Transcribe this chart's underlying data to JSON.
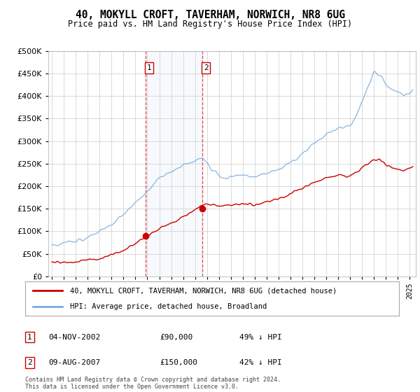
{
  "title": "40, MOKYLL CROFT, TAVERHAM, NORWICH, NR8 6UG",
  "subtitle": "Price paid vs. HM Land Registry's House Price Index (HPI)",
  "legend_line1": "40, MOKYLL CROFT, TAVERHAM, NORWICH, NR8 6UG (detached house)",
  "legend_line2": "HPI: Average price, detached house, Broadland",
  "footnote1": "Contains HM Land Registry data © Crown copyright and database right 2024.",
  "footnote2": "This data is licensed under the Open Government Licence v3.0.",
  "transaction1_date": "04-NOV-2002",
  "transaction1_price": "£90,000",
  "transaction1_hpi": "49% ↓ HPI",
  "transaction2_date": "09-AUG-2007",
  "transaction2_price": "£150,000",
  "transaction2_hpi": "42% ↓ HPI",
  "hpi_color": "#7aaddc",
  "price_color": "#cc0000",
  "marker1_x": 2002.84,
  "marker1_y": 90000,
  "marker2_x": 2007.61,
  "marker2_y": 150000,
  "ylim": [
    0,
    500000
  ],
  "xlim_start": 1994.7,
  "xlim_end": 2025.5,
  "yticks": [
    0,
    50000,
    100000,
    150000,
    200000,
    250000,
    300000,
    350000,
    400000,
    450000,
    500000
  ],
  "background_color": "#ffffff",
  "plot_bg_color": "#ffffff",
  "grid_color": "#cccccc"
}
